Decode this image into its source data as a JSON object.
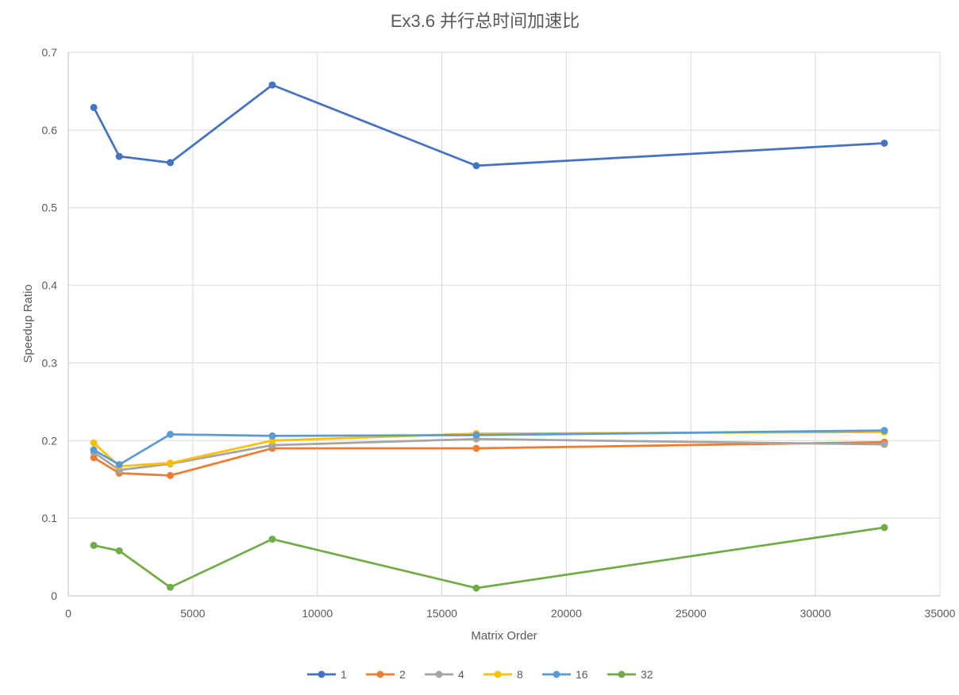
{
  "chart_data": {
    "type": "line",
    "title": "Ex3.6 并行总时间加速比",
    "xlabel": "Matrix Order",
    "ylabel": "Speedup Ratio",
    "xlim": [
      0,
      35000
    ],
    "ylim": [
      0,
      0.7
    ],
    "xticks": [
      0,
      5000,
      10000,
      15000,
      20000,
      25000,
      30000,
      35000
    ],
    "yticks": [
      0,
      0.1,
      0.2,
      0.3,
      0.4,
      0.5,
      0.6,
      0.7
    ],
    "grid": true,
    "legend_position": "bottom",
    "x": [
      1024,
      2048,
      4096,
      8192,
      16384,
      32768
    ],
    "series": [
      {
        "name": "1",
        "color": "#4472C4",
        "values": [
          0.629,
          0.566,
          0.558,
          0.658,
          0.554,
          0.583
        ]
      },
      {
        "name": "2",
        "color": "#ED7D31",
        "values": [
          0.178,
          0.158,
          0.155,
          0.19,
          0.19,
          0.198
        ]
      },
      {
        "name": "4",
        "color": "#A5A5A5",
        "values": [
          0.185,
          0.162,
          0.17,
          0.194,
          0.202,
          0.195
        ]
      },
      {
        "name": "8",
        "color": "#FFC000",
        "values": [
          0.197,
          0.167,
          0.171,
          0.2,
          0.209,
          0.211
        ]
      },
      {
        "name": "16",
        "color": "#5B9BD5",
        "values": [
          0.188,
          0.169,
          0.208,
          0.206,
          0.207,
          0.213
        ]
      },
      {
        "name": "32",
        "color": "#70AD47",
        "values": [
          0.065,
          0.058,
          0.011,
          0.073,
          0.01,
          0.088
        ]
      }
    ]
  }
}
